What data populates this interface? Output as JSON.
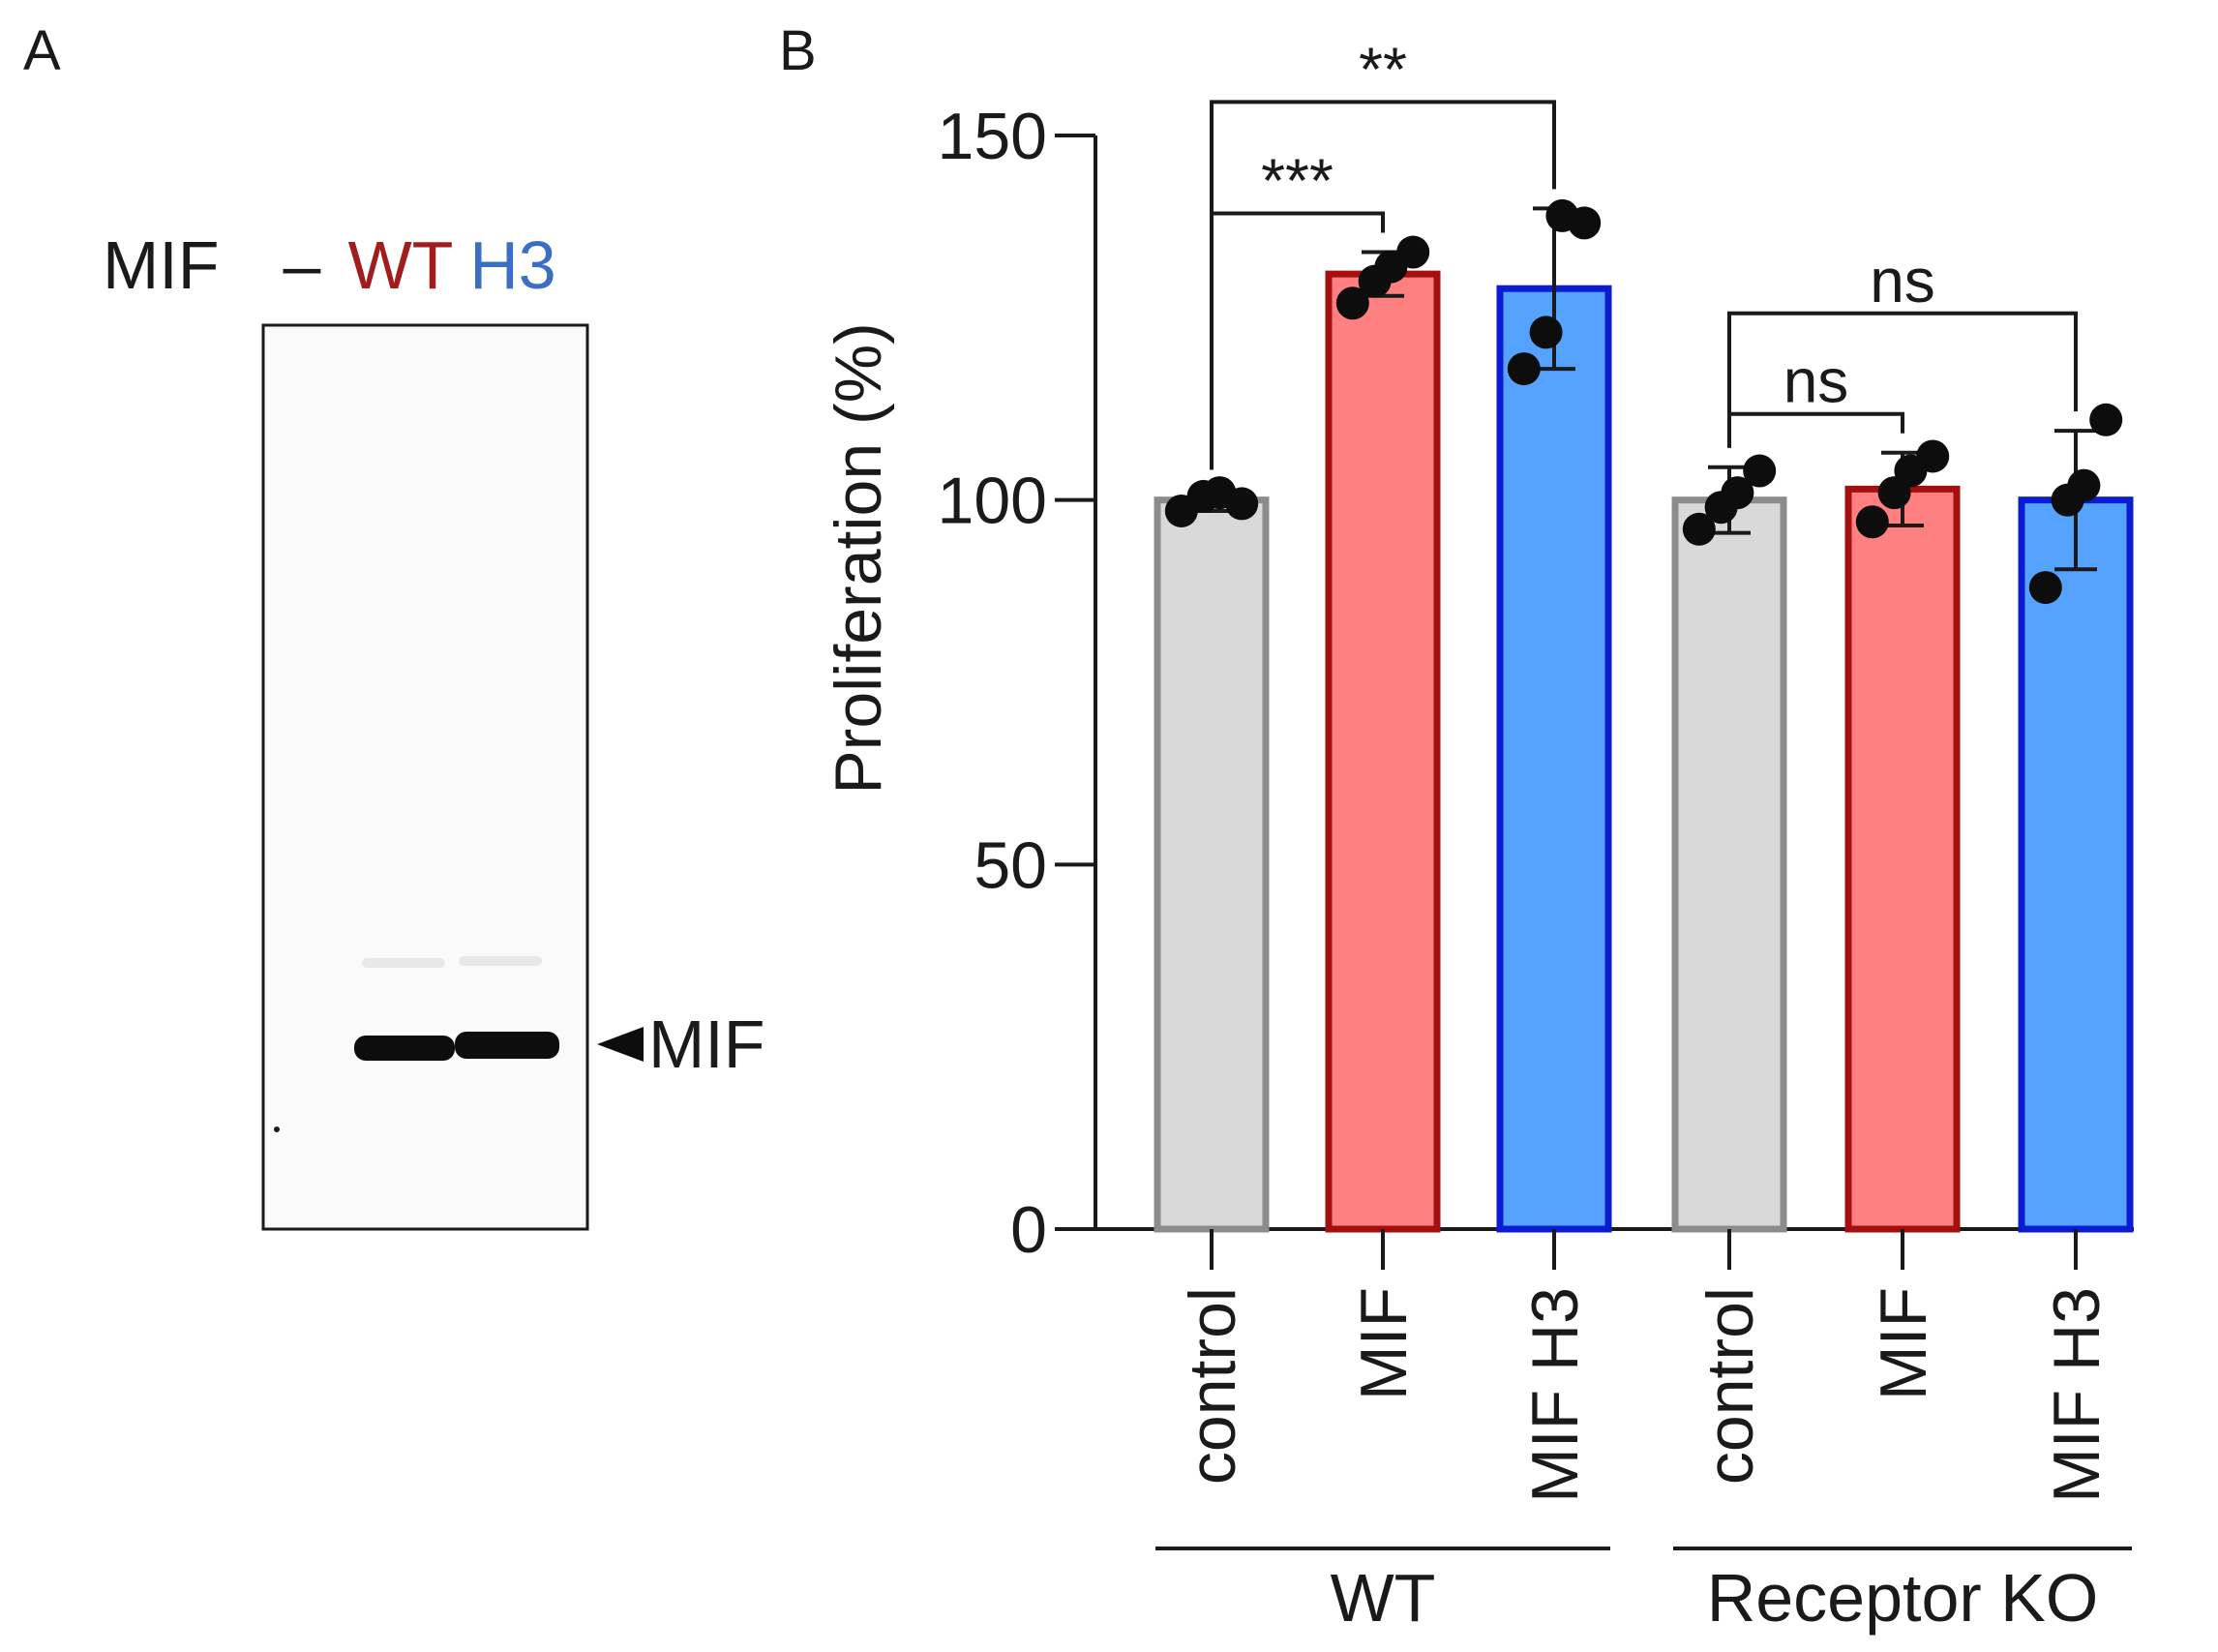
{
  "panel_a": {
    "label": "A",
    "header_label": "MIF",
    "lanes": [
      {
        "label": "–",
        "color": "#1a1a1a"
      },
      {
        "label": "WT",
        "color": "#a11d1d"
      },
      {
        "label": "H3",
        "color": "#3a6fc4"
      }
    ],
    "band_marker": "MIF"
  },
  "panel_b": {
    "label": "B"
  },
  "chart_data": {
    "type": "bar",
    "ylabel": "Proliferation (%)",
    "ylim": [
      0,
      150
    ],
    "yticks": [
      0,
      50,
      100,
      150
    ],
    "categories": [
      "control",
      "MIF",
      "MIF H3",
      "control",
      "MIF",
      "MIF H3"
    ],
    "groups": [
      {
        "name": "WT",
        "indices": [
          0,
          1,
          2
        ]
      },
      {
        "name": "Receptor KO",
        "indices": [
          3,
          4,
          5
        ]
      }
    ],
    "bars": [
      {
        "value": 100,
        "sd": 1.5,
        "points": [
          98.5,
          100.5,
          101,
          99.5
        ],
        "fill": "#d9d9d9",
        "stroke": "#8c8c8c"
      },
      {
        "value": 131,
        "sd": 3,
        "points": [
          127,
          130,
          132,
          134
        ],
        "fill": "#ff8080",
        "stroke": "#a50f0f"
      },
      {
        "value": 129,
        "sd": 11,
        "points": [
          118,
          123,
          139,
          138
        ],
        "fill": "#55a3ff",
        "stroke": "#0a1bd1"
      },
      {
        "value": 100,
        "sd": 4.5,
        "points": [
          96,
          99,
          101,
          104
        ],
        "fill": "#d9d9d9",
        "stroke": "#8c8c8c"
      },
      {
        "value": 101.5,
        "sd": 5,
        "points": [
          97,
          101,
          104,
          106
        ],
        "fill": "#ff8080",
        "stroke": "#a50f0f"
      },
      {
        "value": 100,
        "sd": 9.5,
        "points": [
          88,
          100,
          102,
          111
        ],
        "fill": "#55a3ff",
        "stroke": "#0a1bd1"
      }
    ],
    "significance": [
      {
        "from": 0,
        "to": 1,
        "label": "***",
        "level": 1
      },
      {
        "from": 0,
        "to": 2,
        "label": "**",
        "level": 2
      },
      {
        "from": 3,
        "to": 4,
        "label": "ns",
        "level": 1
      },
      {
        "from": 3,
        "to": 5,
        "label": "ns",
        "level": 2
      }
    ]
  }
}
